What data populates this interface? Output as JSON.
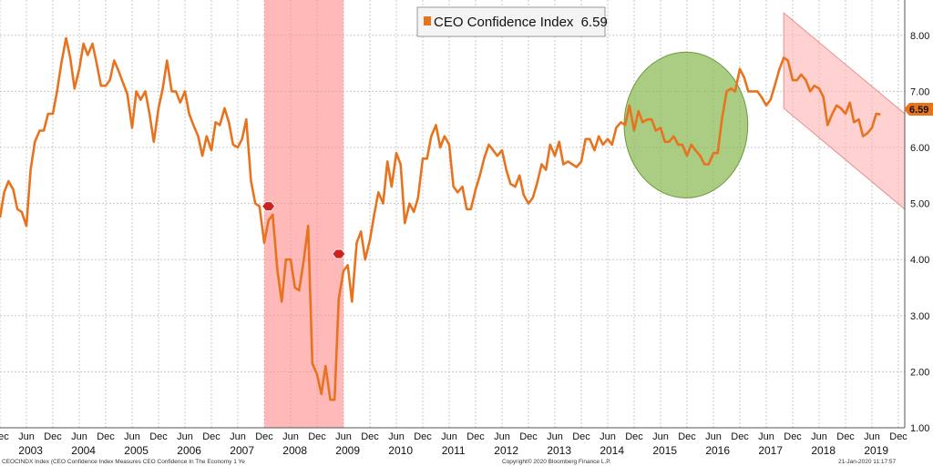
{
  "chart_data": {
    "type": "line",
    "legend": {
      "label": "CEO Confidence Index",
      "value_label": "6.59",
      "placement": "top-center",
      "color": "#e8731f"
    },
    "last_value_label": "6.59",
    "ylim": [
      1.0,
      8.5
    ],
    "y_ticks": [
      "8.00",
      "7.00",
      "6.00",
      "5.00",
      "4.00",
      "3.00",
      "2.00",
      "1.00"
    ],
    "y_tick_values": [
      8,
      7,
      6,
      5,
      4,
      3,
      2,
      1
    ],
    "xlim": [
      2002.92,
      2020.04
    ],
    "month_ticks": [
      {
        "label": "Dec",
        "t": 2002.92
      },
      {
        "label": "Jun",
        "t": 2003.42
      },
      {
        "label": "Dec",
        "t": 2003.92
      },
      {
        "label": "Jun",
        "t": 2004.42
      },
      {
        "label": "Dec",
        "t": 2004.92
      },
      {
        "label": "Jun",
        "t": 2005.42
      },
      {
        "label": "Dec",
        "t": 2005.92
      },
      {
        "label": "Jun",
        "t": 2006.42
      },
      {
        "label": "Dec",
        "t": 2006.92
      },
      {
        "label": "Jun",
        "t": 2007.42
      },
      {
        "label": "Dec",
        "t": 2007.92
      },
      {
        "label": "Jun",
        "t": 2008.42
      },
      {
        "label": "Dec",
        "t": 2008.92
      },
      {
        "label": "Jun",
        "t": 2009.42
      },
      {
        "label": "Dec",
        "t": 2009.92
      },
      {
        "label": "Jun",
        "t": 2010.42
      },
      {
        "label": "Dec",
        "t": 2010.92
      },
      {
        "label": "Jun",
        "t": 2011.42
      },
      {
        "label": "Dec",
        "t": 2011.92
      },
      {
        "label": "Jun",
        "t": 2012.42
      },
      {
        "label": "Dec",
        "t": 2012.92
      },
      {
        "label": "Jun",
        "t": 2013.42
      },
      {
        "label": "Dec",
        "t": 2013.92
      },
      {
        "label": "Jun",
        "t": 2014.42
      },
      {
        "label": "Dec",
        "t": 2014.92
      },
      {
        "label": "Jun",
        "t": 2015.42
      },
      {
        "label": "Dec",
        "t": 2015.92
      },
      {
        "label": "Jun",
        "t": 2016.42
      },
      {
        "label": "Dec",
        "t": 2016.92
      },
      {
        "label": "Jun",
        "t": 2017.42
      },
      {
        "label": "Dec",
        "t": 2017.92
      },
      {
        "label": "Jun",
        "t": 2018.42
      },
      {
        "label": "Dec",
        "t": 2018.92
      },
      {
        "label": "Jun",
        "t": 2019.42
      },
      {
        "label": "Dec",
        "t": 2019.92
      }
    ],
    "year_labels": [
      {
        "label": "2003",
        "t": 2003.5
      },
      {
        "label": "2004",
        "t": 2004.5
      },
      {
        "label": "2005",
        "t": 2005.5
      },
      {
        "label": "2006",
        "t": 2006.5
      },
      {
        "label": "2007",
        "t": 2007.5
      },
      {
        "label": "2008",
        "t": 2008.5
      },
      {
        "label": "2009",
        "t": 2009.5
      },
      {
        "label": "2010",
        "t": 2010.5
      },
      {
        "label": "2011",
        "t": 2011.5
      },
      {
        "label": "2012",
        "t": 2012.5
      },
      {
        "label": "2013",
        "t": 2013.5
      },
      {
        "label": "2014",
        "t": 2014.5
      },
      {
        "label": "2015",
        "t": 2015.5
      },
      {
        "label": "2016",
        "t": 2016.5
      },
      {
        "label": "2017",
        "t": 2017.5
      },
      {
        "label": "2018",
        "t": 2018.5
      },
      {
        "label": "2019",
        "t": 2019.5
      }
    ],
    "grid": true,
    "series": [
      {
        "color": "#e8731f",
        "points": [
          [
            2002.92,
            4.75
          ],
          [
            2003.0,
            5.2
          ],
          [
            2003.08,
            5.4
          ],
          [
            2003.17,
            5.25
          ],
          [
            2003.25,
            4.9
          ],
          [
            2003.33,
            4.85
          ],
          [
            2003.42,
            4.6
          ],
          [
            2003.5,
            5.6
          ],
          [
            2003.58,
            6.1
          ],
          [
            2003.67,
            6.3
          ],
          [
            2003.75,
            6.3
          ],
          [
            2003.83,
            6.6
          ],
          [
            2003.92,
            6.6
          ],
          [
            2004.0,
            7.0
          ],
          [
            2004.08,
            7.5
          ],
          [
            2004.17,
            7.95
          ],
          [
            2004.25,
            7.6
          ],
          [
            2004.33,
            7.05
          ],
          [
            2004.42,
            7.4
          ],
          [
            2004.5,
            7.85
          ],
          [
            2004.58,
            7.65
          ],
          [
            2004.67,
            7.85
          ],
          [
            2004.75,
            7.5
          ],
          [
            2004.83,
            7.1
          ],
          [
            2004.92,
            7.1
          ],
          [
            2005.0,
            7.2
          ],
          [
            2005.08,
            7.55
          ],
          [
            2005.17,
            7.35
          ],
          [
            2005.25,
            7.15
          ],
          [
            2005.33,
            6.95
          ],
          [
            2005.42,
            6.35
          ],
          [
            2005.5,
            7.0
          ],
          [
            2005.58,
            6.85
          ],
          [
            2005.67,
            7.0
          ],
          [
            2005.75,
            6.6
          ],
          [
            2005.83,
            6.1
          ],
          [
            2005.92,
            6.7
          ],
          [
            2006.0,
            7.05
          ],
          [
            2006.08,
            7.55
          ],
          [
            2006.17,
            7.0
          ],
          [
            2006.25,
            7.0
          ],
          [
            2006.33,
            6.8
          ],
          [
            2006.42,
            7.0
          ],
          [
            2006.5,
            6.6
          ],
          [
            2006.58,
            6.4
          ],
          [
            2006.67,
            6.2
          ],
          [
            2006.75,
            5.85
          ],
          [
            2006.83,
            6.2
          ],
          [
            2006.92,
            5.95
          ],
          [
            2007.0,
            6.45
          ],
          [
            2007.08,
            6.4
          ],
          [
            2007.17,
            6.7
          ],
          [
            2007.25,
            6.45
          ],
          [
            2007.33,
            6.05
          ],
          [
            2007.42,
            6.0
          ],
          [
            2007.5,
            6.15
          ],
          [
            2007.58,
            6.5
          ],
          [
            2007.67,
            5.4
          ],
          [
            2007.75,
            5.0
          ],
          [
            2007.83,
            4.95
          ],
          [
            2007.92,
            4.3
          ],
          [
            2008.0,
            4.7
          ],
          [
            2008.08,
            4.8
          ],
          [
            2008.17,
            3.8
          ],
          [
            2008.25,
            3.25
          ],
          [
            2008.33,
            4.0
          ],
          [
            2008.42,
            4.0
          ],
          [
            2008.5,
            3.5
          ],
          [
            2008.58,
            3.45
          ],
          [
            2008.67,
            4.0
          ],
          [
            2008.75,
            4.6
          ],
          [
            2008.83,
            2.15
          ],
          [
            2008.92,
            1.95
          ],
          [
            2009.0,
            1.6
          ],
          [
            2009.08,
            2.1
          ],
          [
            2009.17,
            1.5
          ],
          [
            2009.25,
            1.5
          ],
          [
            2009.33,
            3.3
          ],
          [
            2009.42,
            3.8
          ],
          [
            2009.5,
            3.9
          ],
          [
            2009.58,
            3.25
          ],
          [
            2009.67,
            4.3
          ],
          [
            2009.75,
            4.5
          ],
          [
            2009.83,
            4.0
          ],
          [
            2009.92,
            4.35
          ],
          [
            2010.0,
            4.8
          ],
          [
            2010.08,
            5.2
          ],
          [
            2010.17,
            5.0
          ],
          [
            2010.25,
            5.75
          ],
          [
            2010.33,
            5.3
          ],
          [
            2010.42,
            5.9
          ],
          [
            2010.5,
            5.7
          ],
          [
            2010.58,
            4.65
          ],
          [
            2010.67,
            5.0
          ],
          [
            2010.75,
            4.85
          ],
          [
            2010.83,
            5.1
          ],
          [
            2010.92,
            5.8
          ],
          [
            2011.0,
            5.8
          ],
          [
            2011.08,
            6.2
          ],
          [
            2011.17,
            6.4
          ],
          [
            2011.25,
            6.0
          ],
          [
            2011.33,
            6.2
          ],
          [
            2011.42,
            6.05
          ],
          [
            2011.5,
            5.3
          ],
          [
            2011.58,
            5.2
          ],
          [
            2011.67,
            5.3
          ],
          [
            2011.75,
            4.9
          ],
          [
            2011.83,
            4.9
          ],
          [
            2011.92,
            5.25
          ],
          [
            2012.0,
            5.5
          ],
          [
            2012.08,
            5.8
          ],
          [
            2012.17,
            6.05
          ],
          [
            2012.25,
            5.95
          ],
          [
            2012.33,
            5.85
          ],
          [
            2012.42,
            5.95
          ],
          [
            2012.5,
            5.6
          ],
          [
            2012.58,
            5.35
          ],
          [
            2012.67,
            5.3
          ],
          [
            2012.75,
            5.5
          ],
          [
            2012.83,
            5.15
          ],
          [
            2012.92,
            5.0
          ],
          [
            2013.0,
            5.1
          ],
          [
            2013.08,
            5.35
          ],
          [
            2013.17,
            5.7
          ],
          [
            2013.25,
            5.6
          ],
          [
            2013.33,
            6.05
          ],
          [
            2013.42,
            5.85
          ],
          [
            2013.5,
            6.1
          ],
          [
            2013.58,
            5.7
          ],
          [
            2013.67,
            5.75
          ],
          [
            2013.75,
            5.7
          ],
          [
            2013.83,
            5.65
          ],
          [
            2013.92,
            5.75
          ],
          [
            2014.0,
            6.15
          ],
          [
            2014.08,
            6.15
          ],
          [
            2014.17,
            5.95
          ],
          [
            2014.25,
            6.2
          ],
          [
            2014.33,
            6.05
          ],
          [
            2014.42,
            6.15
          ],
          [
            2014.5,
            6.05
          ],
          [
            2014.58,
            6.35
          ],
          [
            2014.67,
            6.45
          ],
          [
            2014.75,
            6.4
          ],
          [
            2014.83,
            6.75
          ],
          [
            2014.92,
            6.3
          ],
          [
            2015.0,
            6.65
          ],
          [
            2015.08,
            6.45
          ],
          [
            2015.17,
            6.5
          ],
          [
            2015.25,
            6.5
          ],
          [
            2015.33,
            6.3
          ],
          [
            2015.42,
            6.35
          ],
          [
            2015.5,
            6.1
          ],
          [
            2015.58,
            6.1
          ],
          [
            2015.67,
            6.2
          ],
          [
            2015.75,
            6.05
          ],
          [
            2015.83,
            6.05
          ],
          [
            2015.92,
            5.85
          ],
          [
            2016.0,
            6.05
          ],
          [
            2016.08,
            5.95
          ],
          [
            2016.17,
            5.85
          ],
          [
            2016.25,
            5.7
          ],
          [
            2016.33,
            5.7
          ],
          [
            2016.42,
            5.9
          ],
          [
            2016.5,
            5.9
          ],
          [
            2016.58,
            6.5
          ],
          [
            2016.67,
            7.0
          ],
          [
            2016.75,
            7.05
          ],
          [
            2016.83,
            7.0
          ],
          [
            2016.92,
            7.4
          ],
          [
            2017.0,
            7.25
          ],
          [
            2017.08,
            7.0
          ],
          [
            2017.17,
            7.0
          ],
          [
            2017.25,
            7.0
          ],
          [
            2017.33,
            6.9
          ],
          [
            2017.42,
            6.75
          ],
          [
            2017.5,
            6.85
          ],
          [
            2017.58,
            7.1
          ],
          [
            2017.67,
            7.4
          ],
          [
            2017.75,
            7.6
          ],
          [
            2017.83,
            7.55
          ],
          [
            2017.92,
            7.2
          ],
          [
            2018.0,
            7.2
          ],
          [
            2018.08,
            7.3
          ],
          [
            2018.17,
            7.2
          ],
          [
            2018.25,
            7.0
          ],
          [
            2018.33,
            7.1
          ],
          [
            2018.42,
            7.05
          ],
          [
            2018.5,
            6.9
          ],
          [
            2018.58,
            6.4
          ],
          [
            2018.67,
            6.6
          ],
          [
            2018.75,
            6.75
          ],
          [
            2018.83,
            6.7
          ],
          [
            2018.92,
            6.6
          ],
          [
            2019.0,
            6.8
          ],
          [
            2019.08,
            6.45
          ],
          [
            2019.17,
            6.5
          ],
          [
            2019.25,
            6.2
          ],
          [
            2019.33,
            6.25
          ],
          [
            2019.42,
            6.35
          ],
          [
            2019.5,
            6.6
          ],
          [
            2019.58,
            6.59
          ]
        ]
      }
    ],
    "annotations": [
      {
        "kind": "band",
        "x0": 2007.92,
        "x1": 2009.42,
        "color": "#ff8a8a"
      },
      {
        "kind": "ellipse",
        "cx": 2015.9,
        "cy": 6.4,
        "rx_years": 1.17,
        "ry_value": 1.3,
        "color": "#8fbc5a"
      },
      {
        "kind": "channel",
        "upper": [
          [
            2017.75,
            8.4
          ],
          [
            2020.04,
            6.6
          ]
        ],
        "lower": [
          [
            2017.75,
            6.7
          ],
          [
            2020.04,
            4.9
          ]
        ],
        "color": "#ffb3b3"
      },
      {
        "kind": "marker",
        "t": 2008.0,
        "v": 4.95,
        "color": "#cc2222"
      },
      {
        "kind": "marker",
        "t": 2009.33,
        "v": 4.1,
        "color": "#cc2222"
      }
    ]
  },
  "footer": {
    "left": "CEOCINDX Index (CEO Confidence Index Measures CEO Confidence In The Economy 1 Ye",
    "center": "Copyright© 2020 Bloomberg Finance L.P.",
    "right": "21-Jan-2020 11:17:57"
  }
}
